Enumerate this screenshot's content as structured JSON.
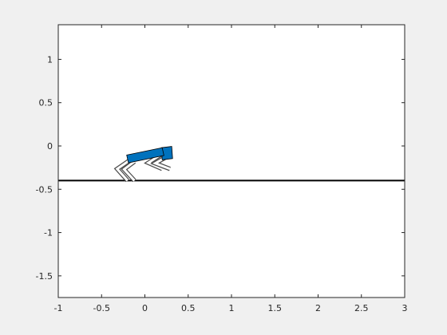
{
  "figure": {
    "background_color": "#f0f0f0",
    "axes_background_color": "#ffffff",
    "axes_edge_color": "#262626"
  },
  "chart_data": {
    "type": "line",
    "title": "",
    "xlabel": "",
    "ylabel": "",
    "xlim": [
      -1,
      3
    ],
    "ylim": [
      -1.75,
      1.4
    ],
    "grid": false,
    "x_ticks": [
      -1,
      -0.5,
      0,
      0.5,
      1,
      1.5,
      2,
      2.5,
      3
    ],
    "x_tick_labels": [
      "-1",
      "-0.5",
      "0",
      "0.5",
      "1",
      "1.5",
      "2",
      "2.5",
      "3"
    ],
    "y_ticks": [
      1,
      0.5,
      0,
      -0.5,
      -1,
      -1.5
    ],
    "y_tick_labels": [
      "1",
      "0.5",
      "0",
      "-0.5",
      "-1",
      "-1.5"
    ],
    "ground_line": {
      "y": -0.4,
      "x": [
        -1,
        3
      ],
      "color": "#000000"
    },
    "robot": {
      "body_color": "#0072bd",
      "leg_fill_color": "#ffffff",
      "leg_edge_color": "#4d4d4d",
      "body_parts": [
        {
          "name": "torso",
          "corners": [
            [
              -0.21,
              -0.105
            ],
            [
              0.2,
              -0.02
            ],
            [
              0.22,
              -0.11
            ],
            [
              -0.19,
              -0.195
            ]
          ]
        },
        {
          "name": "rear-block",
          "corners": [
            [
              0.19,
              -0.02
            ],
            [
              0.31,
              -0.005
            ],
            [
              0.32,
              -0.145
            ],
            [
              0.2,
              -0.16
            ]
          ]
        }
      ],
      "legs": [
        {
          "name": "hind-leg-back",
          "points": [
            [
              -0.19,
              -0.175
            ],
            [
              -0.32,
              -0.265
            ],
            [
              -0.2,
              -0.4
            ]
          ]
        },
        {
          "name": "hind-leg-front",
          "points": [
            [
              -0.12,
              -0.18
            ],
            [
              -0.24,
              -0.27
            ],
            [
              -0.12,
              -0.4
            ]
          ]
        },
        {
          "name": "fore-leg-back",
          "points": [
            [
              0.2,
              -0.09
            ],
            [
              0.04,
              -0.195
            ],
            [
              0.2,
              -0.265
            ]
          ]
        },
        {
          "name": "fore-leg-front",
          "points": [
            [
              0.27,
              -0.115
            ],
            [
              0.12,
              -0.2
            ],
            [
              0.29,
              -0.265
            ]
          ]
        }
      ]
    }
  }
}
